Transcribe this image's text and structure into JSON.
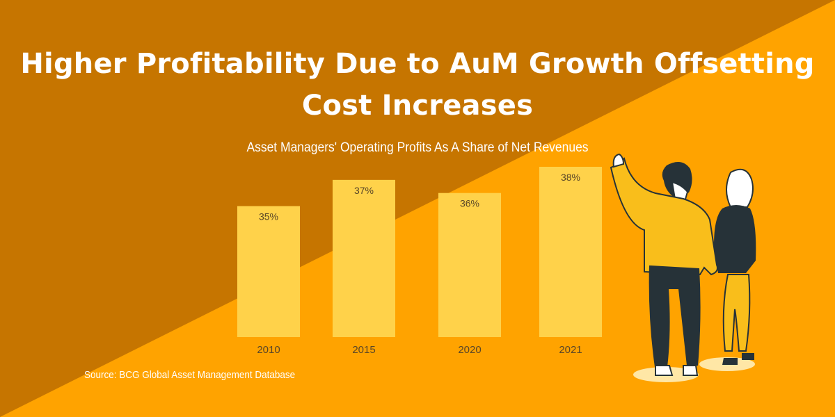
{
  "title": "Higher Profitability Due to AuM Growth Offsetting Cost Increases",
  "colors": {
    "background_dark": "#C67500",
    "background_light": "#FFA300",
    "bar": "#FFD24A",
    "label": "#5A4628",
    "text": "#FFFFFF"
  },
  "chart_data": {
    "type": "bar",
    "title": "Asset Managers' Operating Profits As A Share of Net Revenues",
    "categories": [
      "2010",
      "2015",
      "2020",
      "2021"
    ],
    "values": [
      35,
      37,
      36,
      38
    ],
    "data_labels": [
      "35%",
      "37%",
      "36%",
      "38%"
    ],
    "xlabel": "",
    "ylabel": "",
    "ylim": [
      25,
      38
    ],
    "grid": false,
    "y_axis_visible": false
  },
  "source": "Source: BCG Global Asset Management Database",
  "illustration": "two-people-pointing-at-chart"
}
